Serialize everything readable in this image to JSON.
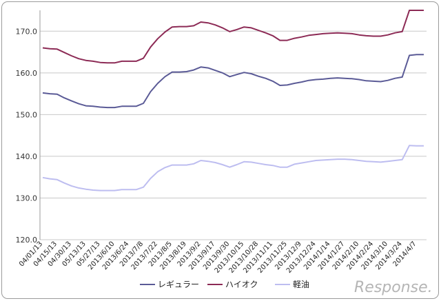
{
  "chart_data": {
    "type": "line",
    "title": "",
    "xlabel": "",
    "ylabel": "",
    "ylim": [
      120,
      175
    ],
    "yticks": [
      "120.0",
      "130.0",
      "140.0",
      "150.0",
      "160.0",
      "170.0"
    ],
    "grid": true,
    "legend_position": "bottom",
    "categories": [
      "04/01/13",
      "04/15/13",
      "04/30/13",
      "05/13/13",
      "05/27/13",
      "2013/6/10",
      "2013/6/24",
      "2013/7/8",
      "2013/7/22",
      "2013/8/5",
      "2013/8/19",
      "2013/9/2",
      "2013/9/17",
      "2013/9/30",
      "2013/10/15",
      "2013/10/28",
      "2013/11/11",
      "2013/11/25",
      "2013/12/9",
      "2013/12/24",
      "2014/1/14",
      "2014/1/27",
      "2014/2/10",
      "2014/2/24",
      "2014/3/10",
      "2014/3/24",
      "2014/4/7"
    ],
    "x": [
      0,
      2,
      4,
      6,
      8,
      10,
      12,
      14,
      16,
      18,
      20,
      22,
      24,
      26,
      28,
      30,
      32,
      34,
      36,
      38,
      40,
      42,
      44,
      46,
      48,
      50,
      52
    ],
    "series": [
      {
        "name": "レギュラー",
        "color": "#5a5a96",
        "values": [
          155.2,
          155.0,
          154.9,
          154.0,
          153.3,
          152.6,
          152.1,
          152.0,
          151.8,
          151.7,
          151.7,
          152.0,
          152.0,
          152.0,
          152.7,
          155.5,
          157.5,
          159.1,
          160.2,
          160.2,
          160.3,
          160.7,
          161.4,
          161.2,
          160.6,
          160.0,
          159.1,
          159.6,
          160.1,
          159.8,
          159.2,
          158.7,
          158.0,
          157.0,
          157.1,
          157.5,
          157.8,
          158.2,
          158.4,
          158.5,
          158.7,
          158.8,
          158.7,
          158.6,
          158.4,
          158.1,
          158.0,
          157.9,
          158.2,
          158.7,
          159.0,
          164.2,
          164.4,
          164.4
        ],
        "x": [
          0,
          1,
          2,
          3,
          4,
          5,
          6,
          7,
          8,
          9,
          10,
          11,
          12,
          13,
          14,
          15,
          16,
          17,
          18,
          19,
          20,
          21,
          22,
          23,
          24,
          25,
          26,
          27,
          28,
          29,
          30,
          31,
          32,
          33,
          34,
          35,
          36,
          37,
          38,
          39,
          40,
          41,
          42,
          43,
          44,
          45,
          46,
          47,
          48,
          49,
          50,
          51,
          52,
          53
        ]
      },
      {
        "name": "ハイオク",
        "color": "#8c2a55",
        "values": [
          166.0,
          165.8,
          165.7,
          164.9,
          164.1,
          163.4,
          163.0,
          162.8,
          162.5,
          162.4,
          162.4,
          162.8,
          162.8,
          162.8,
          163.5,
          166.2,
          168.2,
          169.8,
          171.0,
          171.1,
          171.1,
          171.3,
          172.2,
          172.0,
          171.5,
          170.8,
          169.9,
          170.4,
          171.0,
          170.8,
          170.2,
          169.6,
          168.9,
          167.8,
          167.8,
          168.3,
          168.6,
          169.0,
          169.2,
          169.4,
          169.5,
          169.6,
          169.5,
          169.4,
          169.1,
          168.9,
          168.8,
          168.8,
          169.1,
          169.6,
          169.9,
          175.0,
          175.0,
          175.0
        ],
        "x": [
          0,
          1,
          2,
          3,
          4,
          5,
          6,
          7,
          8,
          9,
          10,
          11,
          12,
          13,
          14,
          15,
          16,
          17,
          18,
          19,
          20,
          21,
          22,
          23,
          24,
          25,
          26,
          27,
          28,
          29,
          30,
          31,
          32,
          33,
          34,
          35,
          36,
          37,
          38,
          39,
          40,
          41,
          42,
          43,
          44,
          45,
          46,
          47,
          48,
          49,
          50,
          51,
          52,
          53
        ]
      },
      {
        "name": "軽油",
        "color": "#bdbdf0",
        "values": [
          134.9,
          134.6,
          134.4,
          133.6,
          132.9,
          132.4,
          132.1,
          131.9,
          131.8,
          131.8,
          131.8,
          132.0,
          132.0,
          132.0,
          132.6,
          134.7,
          136.3,
          137.3,
          137.9,
          137.9,
          137.9,
          138.2,
          139.0,
          138.8,
          138.5,
          138.0,
          137.4,
          138.0,
          138.7,
          138.6,
          138.3,
          138.0,
          137.8,
          137.4,
          137.4,
          138.1,
          138.4,
          138.7,
          139.0,
          139.1,
          139.2,
          139.3,
          139.3,
          139.2,
          139.0,
          138.8,
          138.7,
          138.6,
          138.8,
          139.0,
          139.2,
          142.6,
          142.5,
          142.5
        ],
        "x": [
          0,
          1,
          2,
          3,
          4,
          5,
          6,
          7,
          8,
          9,
          10,
          11,
          12,
          13,
          14,
          15,
          16,
          17,
          18,
          19,
          20,
          21,
          22,
          23,
          24,
          25,
          26,
          27,
          28,
          29,
          30,
          31,
          32,
          33,
          34,
          35,
          36,
          37,
          38,
          39,
          40,
          41,
          42,
          43,
          44,
          45,
          46,
          47,
          48,
          49,
          50,
          51,
          52,
          53
        ]
      }
    ]
  },
  "watermark": "Response."
}
